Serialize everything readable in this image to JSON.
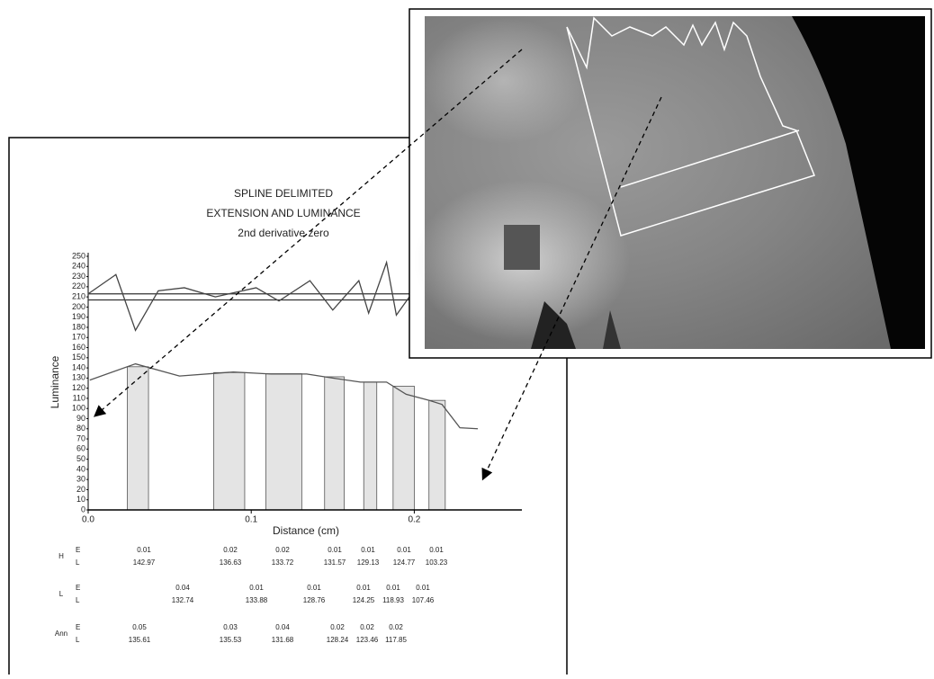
{
  "chart_data": {
    "type": "line",
    "title": [
      "SPLINE DELIMITED",
      "EXTENSION AND LUMINANCE"
    ],
    "subtitle": "2nd derivative zero",
    "x_label": "Distance (cm)",
    "y_label": "Luminance",
    "xlim": [
      0,
      0.266
    ],
    "ylim": [
      0,
      250
    ],
    "xticks": [
      {
        "value": 0,
        "label": "0.0"
      },
      {
        "value": 0.1,
        "label": "0.1"
      },
      {
        "value": 0.2,
        "label": "0.2"
      }
    ],
    "yticks": [
      0,
      10,
      20,
      30,
      40,
      50,
      60,
      70,
      80,
      90,
      100,
      110,
      120,
      130,
      140,
      150,
      160,
      170,
      180,
      190,
      200,
      210,
      220,
      230,
      240,
      250
    ],
    "series": [
      {
        "x": [
          0.001,
          0.029,
          0.056,
          0.089,
          0.112,
          0.134,
          0.15,
          0.167,
          0.183,
          0.195,
          0.209,
          0.217,
          0.228,
          0.239
        ],
        "values": [
          128,
          144,
          132,
          136,
          134,
          134,
          130,
          126,
          126,
          114,
          108,
          104,
          81,
          80
        ],
        "color": "#555555"
      },
      {
        "x": [
          0.0,
          0.017,
          0.029,
          0.043,
          0.059,
          0.078,
          0.103,
          0.117,
          0.136,
          0.15,
          0.166,
          0.172,
          0.183,
          0.189,
          0.197
        ],
        "values": [
          213,
          232,
          177,
          216,
          219,
          210,
          219,
          206,
          226,
          197,
          226,
          194,
          244,
          192,
          210
        ],
        "color": "#444444"
      }
    ],
    "hlines": [
      213,
      207
    ],
    "bands": [
      [
        0.024,
        0.037
      ],
      [
        0.077,
        0.096
      ],
      [
        0.109,
        0.131
      ],
      [
        0.145,
        0.157
      ],
      [
        0.169,
        0.177
      ],
      [
        0.187,
        0.2
      ],
      [
        0.209,
        0.219
      ]
    ]
  },
  "table": {
    "rows": [
      {
        "label": "H",
        "keys": [
          "E",
          "L"
        ],
        "E": [
          "0.01",
          "0.02",
          "0.02",
          "0.01",
          "0.01",
          "0.01",
          "0.01"
        ],
        "L": [
          "142.97",
          "136.63",
          "133.72",
          "131.57",
          "129.13",
          "124.77",
          "103.23"
        ]
      },
      {
        "label": "L",
        "keys": [
          "E",
          "L"
        ],
        "E": [
          "0.04",
          "0.01",
          "0.01",
          "0.01",
          "0.01",
          "0.01"
        ],
        "L": [
          "132.74",
          "133.88",
          "128.76",
          "124.25",
          "118.93",
          "107.46"
        ]
      },
      {
        "label": "Ann",
        "keys": [
          "E",
          "L"
        ],
        "E": [
          "0.05",
          "0.03",
          "0.04",
          "0.02",
          "0.02",
          "0.02"
        ],
        "L": [
          "135.61",
          "135.53",
          "131.68",
          "128.24",
          "123.46",
          "117.85"
        ]
      }
    ]
  }
}
